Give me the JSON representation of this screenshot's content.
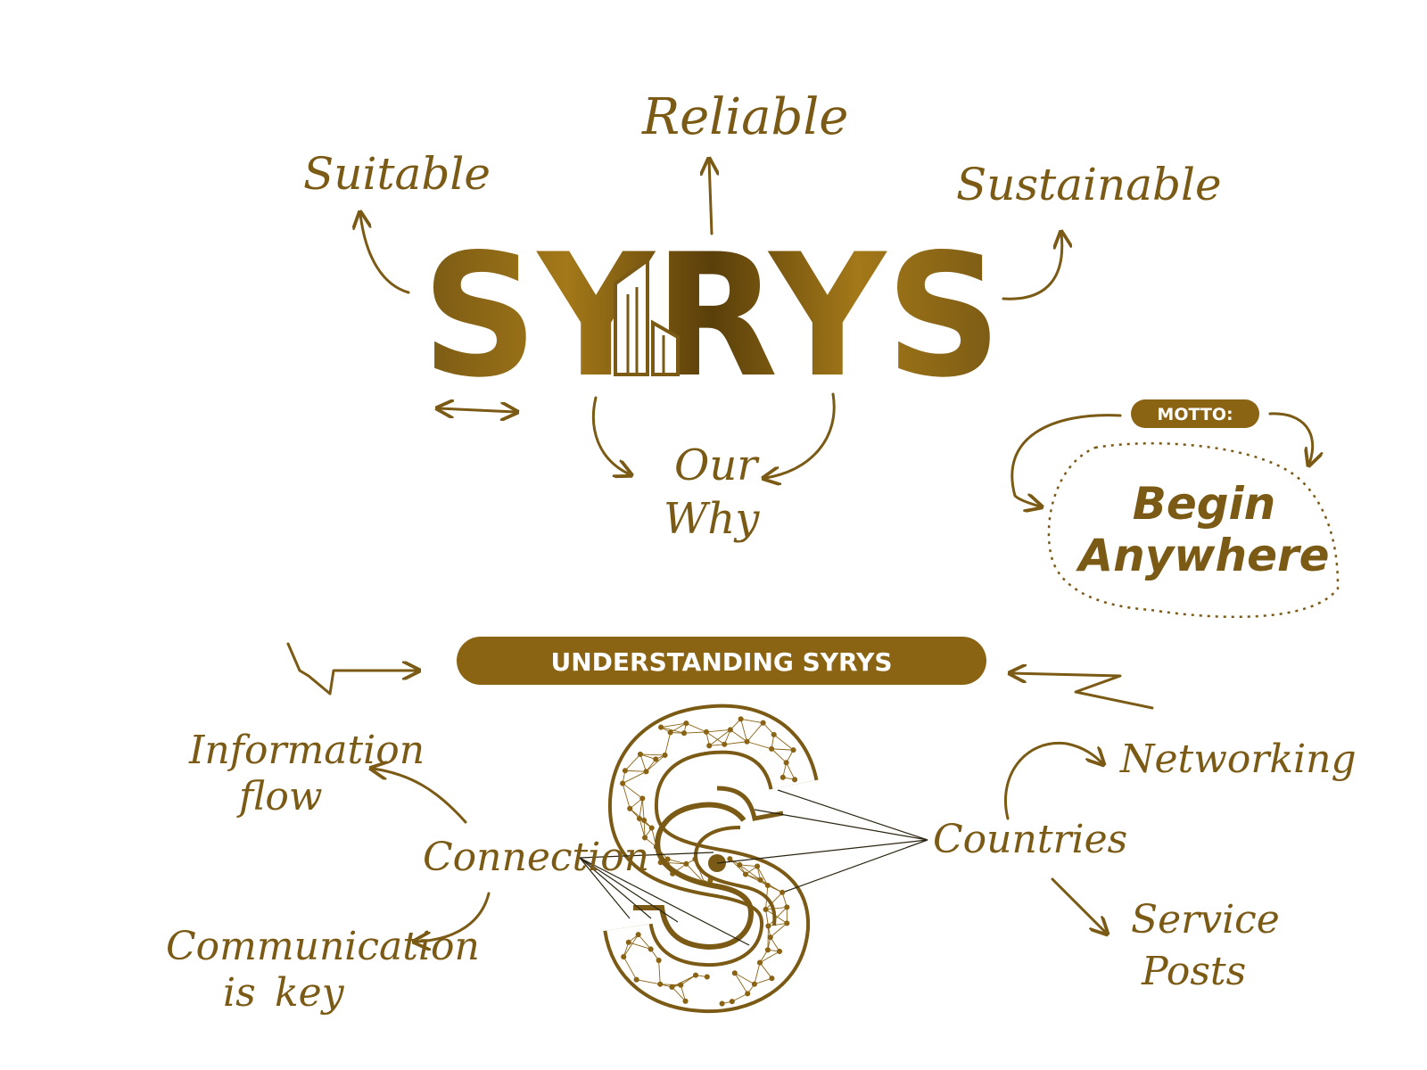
{
  "colors": {
    "gold": "#7a5a14",
    "gold_light": "#a37819",
    "gold_dark": "#5a3f0a",
    "pill": "#8a6313",
    "white": "#ffffff"
  },
  "logo": {
    "wordmark": "SYRYS",
    "building_icon": "building-icon"
  },
  "top_words": {
    "reliable": "Reliable",
    "suitable": "Suitable",
    "sustainable": "Sustainable",
    "our": "Our",
    "why": "Why"
  },
  "motto": {
    "label": "MOTTO:",
    "line1": "Begin",
    "line2": "Anywhere"
  },
  "section": {
    "banner": "UNDERSTANDING SYRYS"
  },
  "left_words": {
    "information": "Information",
    "flow": "flow",
    "connection": "Connection",
    "communication": "Communication",
    "is": "is",
    "key": "key"
  },
  "right_words": {
    "networking": "Networking",
    "countries": "Countries",
    "service": "Service",
    "posts": "Posts"
  },
  "network_emblem": {
    "icon": "network-s-icon"
  }
}
